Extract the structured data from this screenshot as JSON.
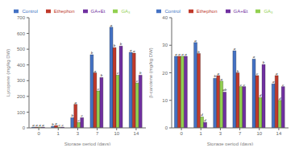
{
  "chart_data": [
    {
      "type": "bar",
      "xlabel": "Storage period (days)",
      "ylabel": "Lycopene (mg/kg DW)",
      "categories": [
        "0",
        "1",
        "3",
        "7",
        "10",
        "14"
      ],
      "series": [
        {
          "name": "Control",
          "color": "#4472C4",
          "values": [
            5,
            10,
            65,
            465,
            640,
            480
          ],
          "letters": [
            "a",
            "b",
            "b",
            "b",
            "a",
            "a"
          ]
        },
        {
          "name": "Ethephon",
          "color": "#C0392B",
          "values": [
            5,
            15,
            150,
            350,
            510,
            475
          ],
          "letters": [
            "a",
            "a",
            "a",
            "a",
            "b",
            "a"
          ]
        },
        {
          "name": "GA₃",
          "color": "#92D050",
          "values": [
            5,
            5,
            35,
            235,
            335,
            285
          ],
          "letters": [
            "a",
            "c",
            "c",
            "c",
            "c",
            "c"
          ]
        },
        {
          "name": "GA+Et",
          "color": "#7030A0",
          "values": [
            5,
            5,
            65,
            320,
            520,
            335
          ],
          "letters": [
            "a",
            "c",
            "c",
            "b",
            "b",
            "b"
          ]
        }
      ],
      "ylim": [
        0,
        700
      ],
      "yticks": [
        0,
        100,
        200,
        300,
        400,
        500,
        600,
        700
      ],
      "grid": false,
      "legend": "top"
    },
    {
      "type": "bar",
      "xlabel": "Storage period (days)",
      "ylabel": "β-carotene (mg/kg DW)",
      "categories": [
        "0",
        "1",
        "3",
        "7",
        "10",
        "14"
      ],
      "series": [
        {
          "name": "Control",
          "color": "#4472C4",
          "values": [
            26,
            31,
            18,
            28,
            25,
            16
          ],
          "letters": [
            "a",
            "a",
            "b",
            "a",
            "a",
            "a"
          ]
        },
        {
          "name": "Ethephon",
          "color": "#C0392B",
          "values": [
            26,
            27,
            19,
            20,
            19,
            19
          ],
          "letters": [
            "a",
            "b",
            "a",
            "b",
            "c",
            "a"
          ]
        },
        {
          "name": "GA₃",
          "color": "#92D050",
          "values": [
            26,
            4,
            17,
            15,
            11,
            10
          ],
          "letters": [
            "a",
            "d",
            "a",
            "c",
            "d",
            "d"
          ]
        },
        {
          "name": "GA+Et",
          "color": "#7030A0",
          "values": [
            26,
            2,
            13,
            15,
            23,
            15
          ],
          "letters": [
            "a",
            "d",
            "ab",
            "c",
            "b",
            "c"
          ]
        }
      ],
      "ylim": [
        0,
        40
      ],
      "yticks": [
        0,
        10,
        20,
        30,
        40
      ],
      "grid": false,
      "legend": "top"
    }
  ]
}
